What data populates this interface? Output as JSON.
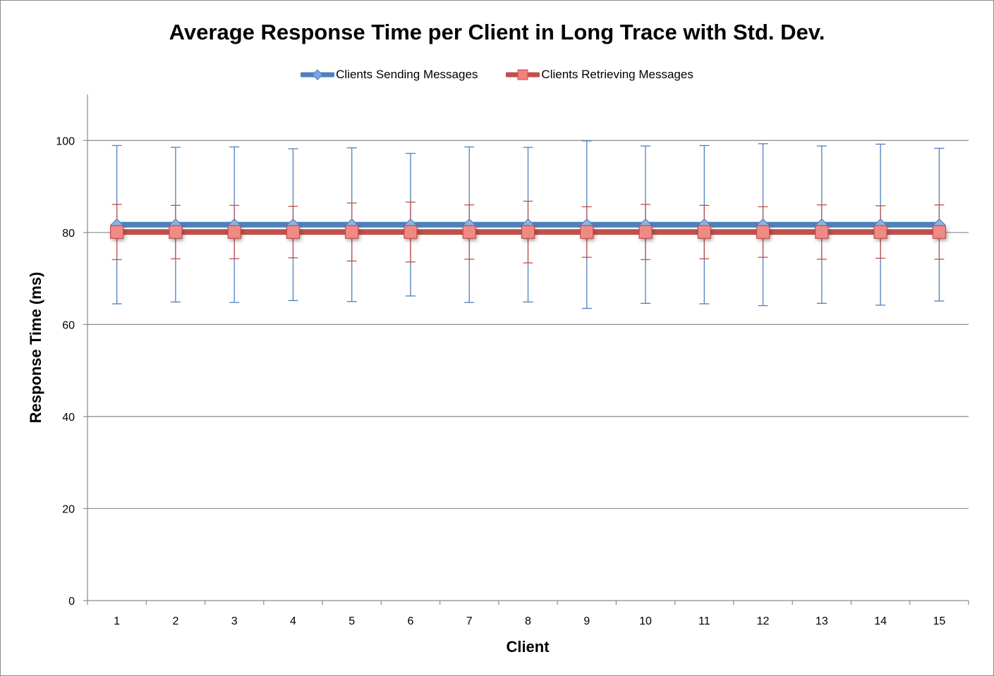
{
  "chart_data": {
    "type": "line",
    "title": "Average Response Time per Client in Long Trace with Std. Dev.",
    "xlabel": "Client",
    "ylabel": "Response Time (ms)",
    "categories": [
      "1",
      "2",
      "3",
      "4",
      "5",
      "6",
      "7",
      "8",
      "9",
      "10",
      "11",
      "12",
      "13",
      "14",
      "15"
    ],
    "ylim": [
      0,
      110
    ],
    "yticks": [
      0,
      20,
      40,
      60,
      80,
      100
    ],
    "grid": true,
    "legend_position": "top",
    "series": [
      {
        "name": "Clients Sending Messages",
        "color": "#4f81bd",
        "marker": "diamond",
        "values": [
          81.7,
          81.7,
          81.7,
          81.7,
          81.7,
          81.7,
          81.7,
          81.7,
          81.7,
          81.7,
          81.7,
          81.7,
          81.7,
          81.7,
          81.7
        ],
        "std": [
          17.2,
          16.8,
          16.9,
          16.5,
          16.7,
          15.5,
          16.9,
          16.8,
          18.2,
          17.1,
          17.2,
          17.6,
          17.1,
          17.5,
          16.6
        ]
      },
      {
        "name": "Clients Retrieving Messages",
        "color": "#c0504d",
        "marker": "square",
        "values": [
          80.1,
          80.1,
          80.1,
          80.1,
          80.1,
          80.1,
          80.1,
          80.1,
          80.1,
          80.1,
          80.1,
          80.1,
          80.1,
          80.1,
          80.1
        ],
        "std": [
          6.0,
          5.8,
          5.8,
          5.6,
          6.3,
          6.5,
          5.9,
          6.7,
          5.5,
          6.0,
          5.8,
          5.5,
          5.9,
          5.7,
          5.9
        ]
      }
    ]
  }
}
